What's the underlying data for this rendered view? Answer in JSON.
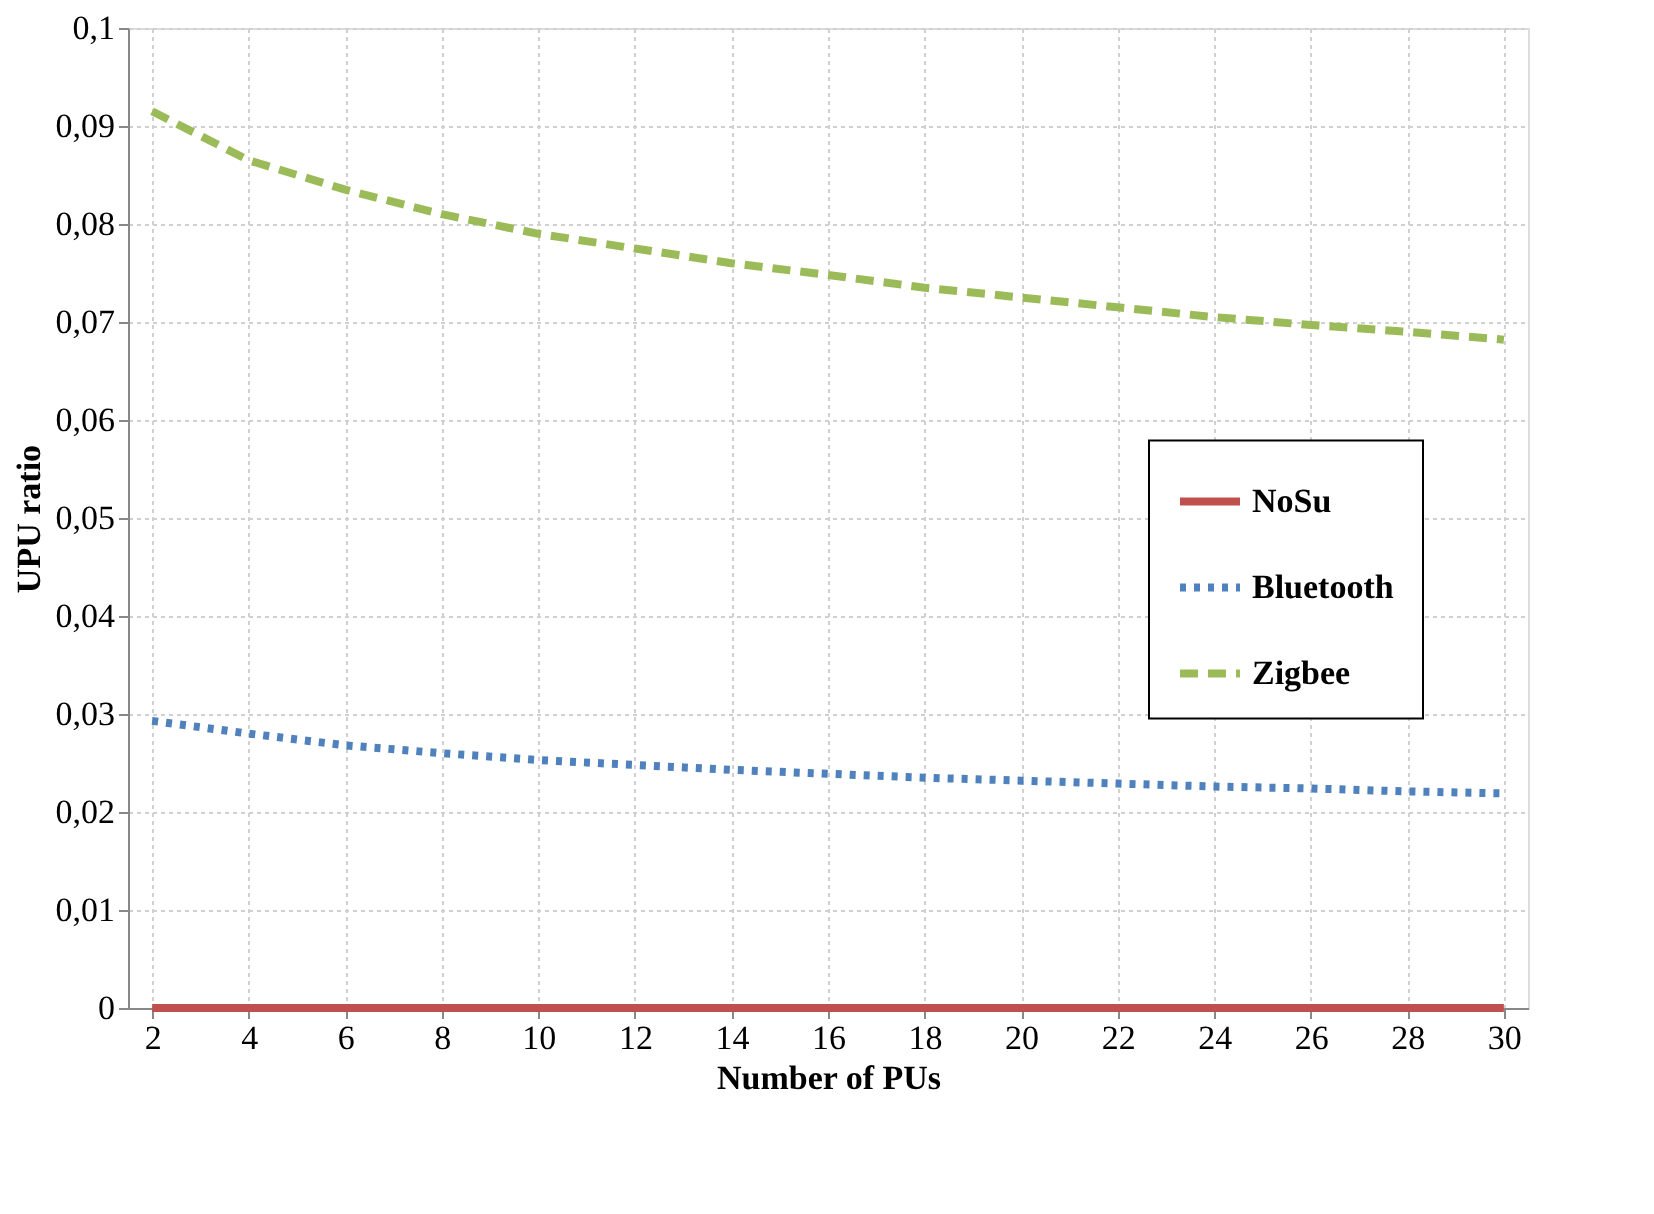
{
  "chart_data": {
    "type": "line",
    "xlabel": "Number of PUs",
    "ylabel": "UPU ratio",
    "x": [
      2,
      4,
      6,
      8,
      10,
      12,
      14,
      16,
      18,
      20,
      22,
      24,
      26,
      28,
      30
    ],
    "series": [
      {
        "name": "NoSu",
        "color": "#c0504d",
        "line_style": "solid",
        "values": [
          0,
          0,
          0,
          0,
          0,
          0,
          0,
          0,
          0,
          0,
          0,
          0,
          0,
          0,
          0
        ]
      },
      {
        "name": "Bluetooth",
        "color": "#4f81bd",
        "line_style": "dotted",
        "values": [
          0.0293,
          0.028,
          0.0268,
          0.026,
          0.0253,
          0.0248,
          0.0243,
          0.0239,
          0.0235,
          0.0232,
          0.0229,
          0.0226,
          0.0224,
          0.0221,
          0.0219
        ]
      },
      {
        "name": "Zigbee",
        "color": "#9bbb59",
        "line_style": "dashed",
        "values": [
          0.0915,
          0.0865,
          0.0835,
          0.081,
          0.079,
          0.0775,
          0.076,
          0.0748,
          0.0735,
          0.0725,
          0.0715,
          0.0705,
          0.0697,
          0.069,
          0.0682
        ]
      }
    ],
    "xlim": [
      1.5,
      30.5
    ],
    "xticks": [
      2,
      4,
      6,
      8,
      10,
      12,
      14,
      16,
      18,
      20,
      22,
      24,
      26,
      28,
      30
    ],
    "ylim": [
      0,
      0.1
    ],
    "yticks": [
      0,
      {
        "value": 0.01,
        "label": "0,01"
      },
      {
        "value": 0.02,
        "label": "0,02"
      },
      {
        "value": 0.03,
        "label": "0,03"
      },
      {
        "value": 0.04,
        "label": "0,04"
      },
      {
        "value": 0.05,
        "label": "0,05"
      },
      {
        "value": 0.06,
        "label": "0,06"
      },
      {
        "value": 0.07,
        "label": "0,07"
      },
      {
        "value": 0.08,
        "label": "0,08"
      },
      {
        "value": 0.09,
        "label": "0,09"
      },
      {
        "value": 0.1,
        "label": "0,1"
      }
    ],
    "grid": true,
    "legend": "right",
    "marker": "none"
  }
}
